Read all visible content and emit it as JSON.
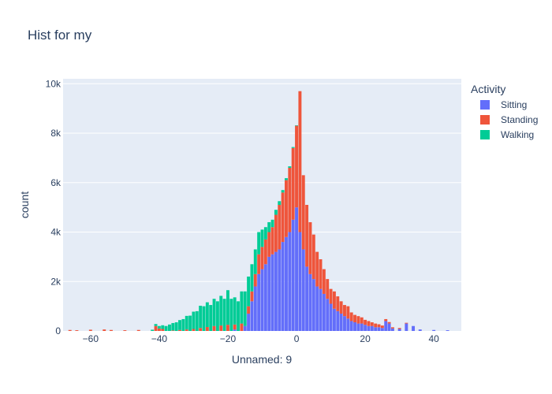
{
  "chart_data": {
    "type": "bar",
    "title": "Hist for my",
    "xlabel": "Unnamed: 9",
    "ylabel": "count",
    "xlim": [
      -68,
      48
    ],
    "ylim": [
      0,
      10200
    ],
    "x_ticks": [
      -60,
      -40,
      -20,
      0,
      20,
      40
    ],
    "x_tick_labels": [
      "−60",
      "−40",
      "−20",
      "0",
      "20",
      "40"
    ],
    "y_ticks": [
      0,
      2000,
      4000,
      6000,
      8000,
      10000
    ],
    "y_tick_labels": [
      "0",
      "2k",
      "4k",
      "6k",
      "8k",
      "10k"
    ],
    "grid": true,
    "barmode": "stacked",
    "legend": {
      "title": "Activity",
      "position": "right"
    },
    "series": [
      {
        "name": "Sitting",
        "color": "#636efa",
        "x": [
          -18,
          -15,
          -14,
          -13,
          -12,
          -11,
          -10,
          -9,
          -8,
          -7,
          -6,
          -5,
          -4,
          -3,
          -2,
          -1,
          0,
          1,
          2,
          3,
          4,
          5,
          6,
          7,
          8,
          9,
          10,
          11,
          12,
          13,
          14,
          15,
          16,
          17,
          18,
          19,
          20,
          21,
          22,
          23,
          24,
          25,
          26,
          27,
          28,
          30,
          32,
          34,
          36,
          40,
          44
        ],
        "values": [
          60,
          200,
          700,
          1200,
          1800,
          2300,
          2500,
          2700,
          3000,
          3100,
          3200,
          3300,
          3600,
          3800,
          4000,
          4500,
          5000,
          4000,
          3300,
          2600,
          2300,
          2100,
          1800,
          1700,
          1500,
          1300,
          1100,
          900,
          800,
          700,
          600,
          500,
          400,
          350,
          300,
          300,
          250,
          200,
          200,
          150,
          150,
          120,
          400,
          300,
          100,
          80,
          300,
          200,
          60,
          40,
          30
        ]
      },
      {
        "name": "Standing",
        "color": "#ef553b",
        "x": [
          -66,
          -64,
          -60,
          -56,
          -54,
          -50,
          -46,
          -41,
          -40,
          -39,
          -36,
          -34,
          -32,
          -30,
          -28,
          -26,
          -24,
          -22,
          -20,
          -18,
          -16,
          -14,
          -13,
          -12,
          -11,
          -10,
          -9,
          -8,
          -7,
          -6,
          -5,
          -4,
          -3,
          -2,
          -1,
          0,
          1,
          2,
          3,
          4,
          5,
          6,
          7,
          8,
          9,
          10,
          11,
          12,
          13,
          14,
          15,
          16,
          17,
          18,
          19,
          20,
          21,
          22,
          23,
          24,
          25,
          26,
          27,
          28,
          30,
          32
        ],
        "values": [
          40,
          30,
          50,
          60,
          40,
          30,
          40,
          200,
          100,
          80,
          20,
          40,
          60,
          80,
          120,
          160,
          200,
          220,
          250,
          200,
          300,
          300,
          400,
          500,
          800,
          900,
          1000,
          1000,
          1100,
          1500,
          1800,
          2000,
          2300,
          2600,
          2900,
          3300,
          5700,
          3000,
          2500,
          2100,
          1800,
          1400,
          1200,
          1000,
          800,
          600,
          700,
          600,
          500,
          450,
          500,
          350,
          300,
          300,
          250,
          200,
          200,
          150,
          150,
          120,
          100,
          80,
          60,
          50,
          40,
          30
        ]
      },
      {
        "name": "Walking",
        "color": "#00cc96",
        "x": [
          -42,
          -41,
          -40,
          -39,
          -38,
          -37,
          -36,
          -35,
          -34,
          -33,
          -32,
          -31,
          -30,
          -29,
          -28,
          -27,
          -26,
          -25,
          -24,
          -23,
          -22,
          -21,
          -20,
          -19,
          -18,
          -17,
          -16,
          -15,
          -14,
          -13,
          -12,
          -11,
          -10,
          -9,
          -8,
          -7,
          -6,
          -5,
          -4,
          -3,
          -2,
          -1,
          0
        ],
        "values": [
          50,
          80,
          100,
          150,
          200,
          260,
          300,
          350,
          400,
          480,
          550,
          620,
          700,
          800,
          900,
          1000,
          1000,
          1050,
          1100,
          1200,
          1200,
          1300,
          1400,
          1300,
          1100,
          1200,
          1300,
          1400,
          1200,
          1100,
          1000,
          900,
          700,
          500,
          400,
          300,
          200,
          150,
          100,
          80,
          60,
          40,
          20
        ]
      }
    ]
  }
}
